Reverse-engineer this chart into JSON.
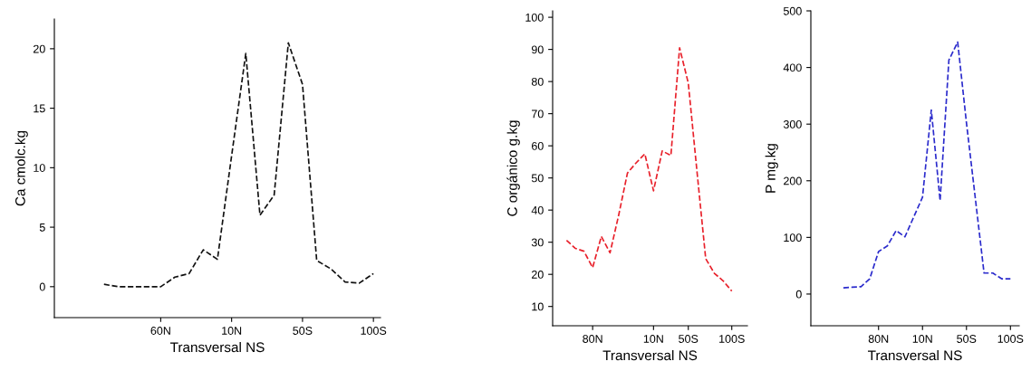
{
  "chart_data": [
    {
      "type": "line",
      "xlabel": "Transversal NS",
      "ylabel": "Ca cmolc.kg",
      "line_style": "dashed",
      "grid": false,
      "ylim": [
        -2.6,
        22.5
      ],
      "yticks": [
        0,
        5,
        10,
        15,
        20
      ],
      "categories": [
        null,
        null,
        null,
        null,
        "60N",
        null,
        null,
        null,
        null,
        "10N",
        null,
        null,
        null,
        null,
        "50S",
        null,
        null,
        null,
        null,
        "100S"
      ],
      "series": [
        {
          "color": "#111111",
          "values": [
            0.2,
            0,
            0,
            0,
            0,
            0.8,
            1.1,
            3.1,
            2.3,
            11,
            19.6,
            6,
            7.7,
            20.5,
            17,
            2.2,
            1.5,
            0.4,
            0.3,
            1.1
          ]
        }
      ]
    },
    {
      "type": "line",
      "xlabel": "Transversal NS",
      "ylabel": "C orgánico g.kg",
      "line_style": "dashed",
      "grid": false,
      "ylim": [
        4,
        102
      ],
      "yticks": [
        10,
        20,
        30,
        40,
        50,
        60,
        70,
        80,
        90,
        100
      ],
      "categories": [
        null,
        null,
        null,
        "80N",
        null,
        null,
        null,
        null,
        null,
        null,
        "10N",
        null,
        null,
        null,
        "50S",
        null,
        null,
        null,
        null,
        "100S"
      ],
      "series": [
        {
          "color": "#e8202a",
          "values": [
            30.6,
            28.1,
            27.2,
            22.1,
            31.8,
            26.7,
            38.5,
            51.5,
            54.7,
            57.5,
            46.0,
            58.4,
            57.0,
            90.5,
            79.5,
            52,
            24.9,
            20.3,
            18.0,
            14.8
          ]
        }
      ]
    },
    {
      "type": "line",
      "xlabel": "Transversal NS",
      "ylabel": "P mg.kg",
      "line_style": "dashed",
      "grid": false,
      "ylim": [
        -56,
        500
      ],
      "yticks": [
        0,
        100,
        200,
        300,
        400,
        500
      ],
      "categories": [
        null,
        null,
        null,
        null,
        "80N",
        null,
        null,
        null,
        null,
        "10N",
        null,
        null,
        null,
        null,
        "50S",
        null,
        null,
        null,
        null,
        "100S"
      ],
      "series": [
        {
          "color": "#2b2bcc",
          "values": [
            11,
            12,
            13,
            27,
            75,
            85,
            112,
            101,
            136,
            171,
            325,
            165,
            413,
            445,
            302,
            170,
            37,
            37,
            27,
            27
          ]
        }
      ]
    }
  ]
}
